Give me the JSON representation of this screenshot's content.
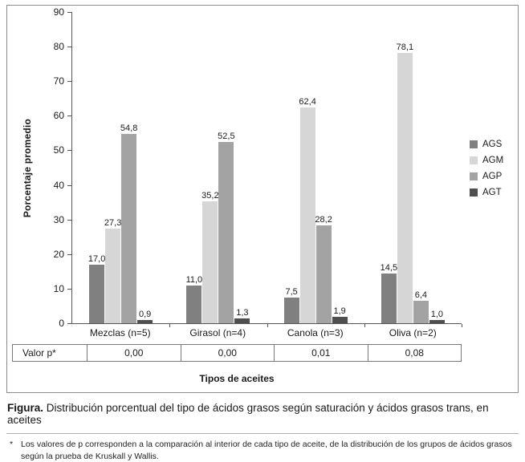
{
  "chart_data": {
    "type": "bar",
    "title": "",
    "categories": [
      "Mezclas (n=5)",
      "Girasol (n=4)",
      "Canola (n=3)",
      "Oliva (n=2)"
    ],
    "series": [
      {
        "name": "AGS",
        "color": "#808080",
        "values": [
          17.0,
          11.0,
          7.5,
          14.5
        ]
      },
      {
        "name": "AGM",
        "color": "#d6d6d6",
        "values": [
          27.3,
          35.2,
          62.4,
          78.1
        ]
      },
      {
        "name": "AGP",
        "color": "#a3a3a3",
        "values": [
          54.8,
          52.5,
          28.2,
          6.4
        ]
      },
      {
        "name": "AGT",
        "color": "#4f4f4f",
        "values": [
          0.9,
          1.3,
          1.9,
          1.0
        ]
      }
    ],
    "ylabel": "Porcentaje promedio",
    "xlabel": "Tipos de aceites",
    "ylim": [
      0,
      90
    ],
    "ytick_step": 10,
    "grid": false,
    "legend_position": "right",
    "value_labels": true,
    "decimal_separator": ","
  },
  "p_table": {
    "row_label": "Valor p*",
    "values": [
      "0,00",
      "0,00",
      "0,01",
      "0,08"
    ]
  },
  "caption": {
    "label": "Figura.",
    "text": " Distribución porcentual del tipo de ácidos grasos según saturación y ácidos grasos trans, en aceites"
  },
  "footnote": {
    "marker": "*",
    "text": "Los valores de p corresponden a la comparación al interior de cada tipo de aceite, de la distribución de los grupos de ácidos grasos según la prueba de Kruskall y Wallis."
  }
}
